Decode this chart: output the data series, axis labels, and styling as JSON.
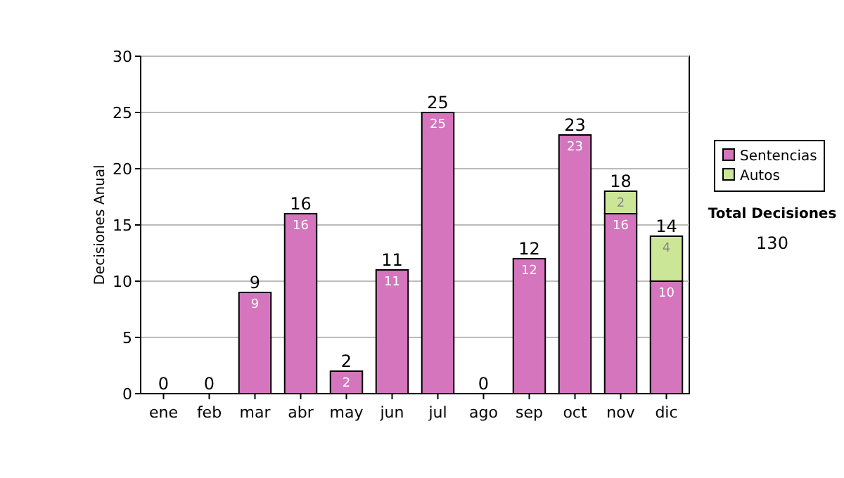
{
  "chart_data": {
    "type": "bar",
    "stacked": true,
    "categories": [
      "ene",
      "feb",
      "mar",
      "abr",
      "may",
      "jun",
      "jul",
      "ago",
      "sep",
      "oct",
      "nov",
      "dic"
    ],
    "series": [
      {
        "name": "Sentencias",
        "color": "#d475bd",
        "values": [
          0,
          0,
          9,
          16,
          2,
          11,
          25,
          0,
          12,
          23,
          16,
          10
        ],
        "value_labels": [
          null,
          null,
          "9",
          "16",
          "2",
          "11",
          "25",
          null,
          "12",
          "23",
          "16",
          "10"
        ]
      },
      {
        "name": "Autos",
        "color": "#cce698",
        "values": [
          0,
          0,
          0,
          0,
          0,
          0,
          0,
          0,
          0,
          0,
          2,
          4
        ],
        "value_labels": [
          null,
          null,
          null,
          null,
          null,
          null,
          null,
          null,
          null,
          null,
          "2",
          "4"
        ]
      }
    ],
    "totals": [
      "0",
      "0",
      "9",
      "16",
      "2",
      "11",
      "25",
      "0",
      "12",
      "23",
      "18",
      "14"
    ],
    "ylabel": "Decisiones Anual",
    "ylim": [
      0,
      30
    ],
    "yticks": [
      0,
      5,
      10,
      15,
      20,
      25,
      30
    ],
    "grid": "y",
    "legend": "right",
    "annotations": [
      "Total Decisiones",
      "130"
    ]
  }
}
